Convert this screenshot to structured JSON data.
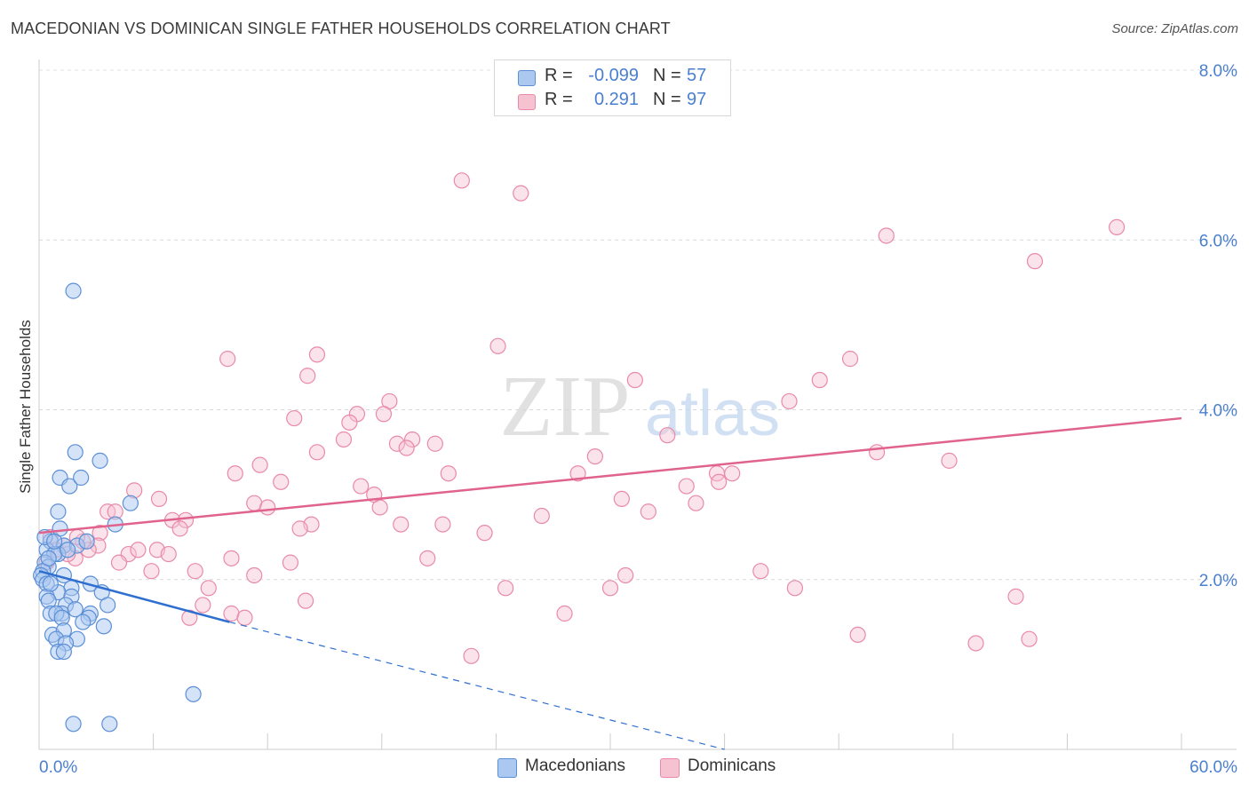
{
  "title": "MACEDONIAN VS DOMINICAN SINGLE FATHER HOUSEHOLDS CORRELATION CHART",
  "source": "Source: ZipAtlas.com",
  "watermark": {
    "zip": "ZIP",
    "atlas": "atlas"
  },
  "legend": {
    "rows": [
      {
        "r_label": "R =",
        "r_value": "-0.099",
        "n_label": "N =",
        "n_value": "57"
      },
      {
        "r_label": "R =",
        "r_value": "0.291",
        "n_label": "N =",
        "n_value": "97"
      }
    ]
  },
  "bottom_legend": {
    "macedonians": "Macedonians",
    "dominicans": "Dominicans"
  },
  "colors": {
    "blue_fill": "#aac8f0",
    "blue_stroke": "#5b8fd6",
    "blue_line": "#2f6fcf",
    "pink_fill": "#f6c2d2",
    "pink_stroke": "#e98aa8",
    "pink_line": "#e0638e",
    "axis_label": "#4a7fd0"
  },
  "chart_data": {
    "type": "scatter",
    "title": "MACEDONIAN VS DOMINICAN SINGLE FATHER HOUSEHOLDS CORRELATION CHART",
    "xlabel": "",
    "ylabel": "Single Father Households",
    "xlim": [
      0,
      60
    ],
    "ylim": [
      0,
      8.0
    ],
    "x_tick_labels": [
      "0.0%",
      "60.0%"
    ],
    "y_ticks": [
      2.0,
      4.0,
      6.0,
      8.0
    ],
    "y_tick_labels": [
      "2.0%",
      "4.0%",
      "6.0%",
      "8.0%"
    ],
    "grid": true,
    "series": [
      {
        "name": "Macedonians",
        "r": -0.099,
        "n": 57,
        "trend": {
          "solid": [
            [
              0,
              2.1
            ],
            [
              10,
              1.5
            ]
          ],
          "dashed": [
            [
              10,
              1.5
            ],
            [
              36,
              0.0
            ]
          ]
        },
        "points": [
          [
            1.8,
            5.4
          ],
          [
            1.9,
            3.5
          ],
          [
            3.2,
            3.4
          ],
          [
            1.1,
            3.2
          ],
          [
            1.6,
            3.1
          ],
          [
            2.2,
            3.2
          ],
          [
            4.8,
            2.9
          ],
          [
            1.0,
            2.8
          ],
          [
            4.0,
            2.65
          ],
          [
            1.1,
            2.6
          ],
          [
            0.6,
            2.45
          ],
          [
            1.3,
            2.4
          ],
          [
            2.0,
            2.4
          ],
          [
            0.4,
            2.35
          ],
          [
            1.0,
            2.3
          ],
          [
            0.8,
            2.3
          ],
          [
            0.3,
            2.2
          ],
          [
            0.5,
            2.15
          ],
          [
            0.2,
            2.1
          ],
          [
            0.1,
            2.05
          ],
          [
            1.3,
            2.05
          ],
          [
            0.2,
            2.0
          ],
          [
            0.4,
            1.95
          ],
          [
            2.7,
            1.95
          ],
          [
            1.7,
            1.9
          ],
          [
            1.0,
            1.85
          ],
          [
            3.3,
            1.85
          ],
          [
            1.7,
            1.8
          ],
          [
            0.4,
            1.8
          ],
          [
            0.5,
            1.75
          ],
          [
            1.4,
            1.7
          ],
          [
            3.6,
            1.7
          ],
          [
            0.6,
            1.6
          ],
          [
            1.2,
            1.6
          ],
          [
            2.7,
            1.6
          ],
          [
            0.9,
            1.6
          ],
          [
            1.2,
            1.55
          ],
          [
            2.6,
            1.55
          ],
          [
            3.4,
            1.45
          ],
          [
            0.7,
            1.35
          ],
          [
            1.3,
            1.4
          ],
          [
            2.0,
            1.3
          ],
          [
            0.9,
            1.3
          ],
          [
            1.4,
            1.25
          ],
          [
            1.0,
            1.15
          ],
          [
            1.3,
            1.15
          ],
          [
            8.1,
            0.65
          ],
          [
            1.8,
            0.3
          ],
          [
            3.7,
            0.3
          ],
          [
            0.3,
            2.5
          ],
          [
            0.8,
            2.45
          ],
          [
            1.5,
            2.35
          ],
          [
            2.5,
            2.45
          ],
          [
            0.6,
            1.95
          ],
          [
            1.9,
            1.65
          ],
          [
            2.3,
            1.5
          ],
          [
            0.5,
            2.25
          ]
        ]
      },
      {
        "name": "Dominicans",
        "r": 0.291,
        "n": 97,
        "trend": {
          "solid": [
            [
              0,
              2.55
            ],
            [
              60,
              3.9
            ]
          ]
        },
        "points": [
          [
            22.2,
            6.7
          ],
          [
            25.3,
            6.55
          ],
          [
            56.6,
            6.15
          ],
          [
            44.5,
            6.05
          ],
          [
            52.3,
            5.75
          ],
          [
            24.1,
            4.75
          ],
          [
            9.9,
            4.6
          ],
          [
            14.6,
            4.65
          ],
          [
            42.6,
            4.6
          ],
          [
            14.1,
            4.4
          ],
          [
            31.3,
            4.35
          ],
          [
            41.0,
            4.35
          ],
          [
            18.4,
            4.1
          ],
          [
            39.4,
            4.1
          ],
          [
            16.7,
            3.95
          ],
          [
            13.4,
            3.9
          ],
          [
            18.1,
            3.95
          ],
          [
            16.3,
            3.85
          ],
          [
            33.0,
            3.7
          ],
          [
            16.0,
            3.65
          ],
          [
            19.6,
            3.65
          ],
          [
            20.8,
            3.6
          ],
          [
            18.8,
            3.6
          ],
          [
            19.3,
            3.55
          ],
          [
            14.6,
            3.5
          ],
          [
            44.0,
            3.5
          ],
          [
            47.8,
            3.4
          ],
          [
            29.2,
            3.45
          ],
          [
            11.6,
            3.35
          ],
          [
            10.3,
            3.25
          ],
          [
            21.5,
            3.25
          ],
          [
            28.3,
            3.25
          ],
          [
            35.6,
            3.25
          ],
          [
            36.4,
            3.25
          ],
          [
            12.7,
            3.15
          ],
          [
            16.9,
            3.1
          ],
          [
            34.0,
            3.1
          ],
          [
            35.7,
            3.15
          ],
          [
            5.0,
            3.05
          ],
          [
            6.3,
            2.95
          ],
          [
            17.6,
            3.0
          ],
          [
            30.6,
            2.95
          ],
          [
            34.5,
            2.9
          ],
          [
            11.3,
            2.9
          ],
          [
            12.0,
            2.85
          ],
          [
            3.6,
            2.8
          ],
          [
            17.9,
            2.85
          ],
          [
            32.0,
            2.8
          ],
          [
            7.0,
            2.7
          ],
          [
            26.4,
            2.75
          ],
          [
            14.3,
            2.65
          ],
          [
            7.7,
            2.7
          ],
          [
            13.7,
            2.6
          ],
          [
            7.4,
            2.6
          ],
          [
            19.0,
            2.65
          ],
          [
            21.2,
            2.65
          ],
          [
            23.4,
            2.55
          ],
          [
            3.2,
            2.55
          ],
          [
            0.6,
            2.5
          ],
          [
            1.3,
            2.4
          ],
          [
            3.1,
            2.4
          ],
          [
            6.2,
            2.35
          ],
          [
            2.6,
            2.35
          ],
          [
            4.7,
            2.3
          ],
          [
            6.8,
            2.3
          ],
          [
            1.9,
            2.25
          ],
          [
            10.1,
            2.25
          ],
          [
            13.2,
            2.2
          ],
          [
            20.4,
            2.25
          ],
          [
            4.2,
            2.2
          ],
          [
            0.4,
            2.2
          ],
          [
            5.9,
            2.1
          ],
          [
            8.2,
            2.1
          ],
          [
            11.3,
            2.05
          ],
          [
            30.8,
            2.05
          ],
          [
            37.9,
            2.1
          ],
          [
            8.9,
            1.9
          ],
          [
            24.5,
            1.9
          ],
          [
            30.0,
            1.9
          ],
          [
            39.7,
            1.9
          ],
          [
            51.3,
            1.8
          ],
          [
            14.0,
            1.75
          ],
          [
            8.6,
            1.7
          ],
          [
            10.1,
            1.6
          ],
          [
            27.6,
            1.6
          ],
          [
            7.9,
            1.55
          ],
          [
            10.8,
            1.55
          ],
          [
            43.0,
            1.35
          ],
          [
            52.0,
            1.3
          ],
          [
            49.2,
            1.25
          ],
          [
            22.7,
            1.1
          ],
          [
            1.5,
            2.3
          ],
          [
            2.3,
            2.45
          ],
          [
            0.9,
            2.35
          ],
          [
            4.0,
            2.8
          ],
          [
            5.2,
            2.35
          ],
          [
            2.0,
            2.5
          ]
        ]
      }
    ]
  }
}
